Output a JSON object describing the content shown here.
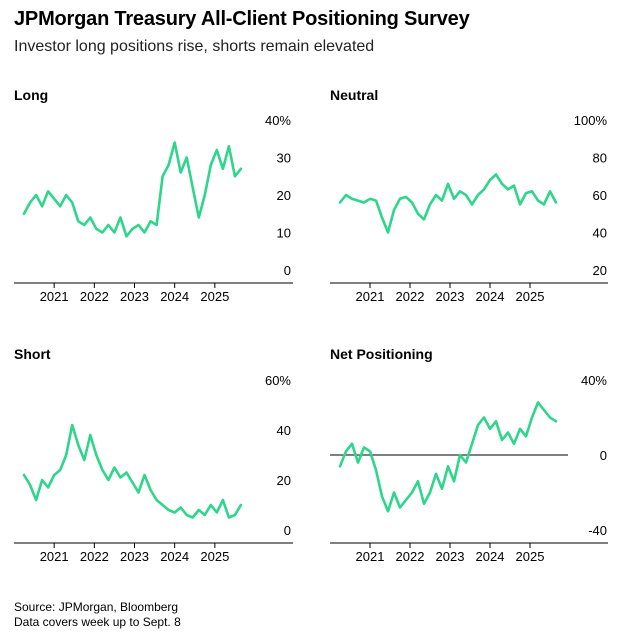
{
  "title": "JPMorgan Treasury All-Client Positioning Survey",
  "subtitle": "Investor long positions rise, shorts remain elevated",
  "source": "Source: JPMorgan, Bloomberg",
  "note": "Data covers week up to Sept. 8",
  "colors": {
    "line": "#2dd68a",
    "axis": "#000000",
    "zero": "#000000"
  },
  "chart_data": [
    {
      "type": "line",
      "title": "Long",
      "ylim": [
        0,
        40
      ],
      "yticks": [
        "40%",
        "30",
        "20",
        "10",
        "0"
      ],
      "ytick_values": [
        40,
        30,
        20,
        10,
        0
      ],
      "xticks": [
        "2021",
        "2022",
        "2023",
        "2024",
        "2025"
      ],
      "xtick_values": [
        2021,
        2022,
        2023,
        2024,
        2025
      ],
      "xlim": [
        2020.0,
        2025.95
      ],
      "series": [
        {
          "x": [
            2020.25,
            2020.4,
            2020.55,
            2020.7,
            2020.85,
            2021.0,
            2021.15,
            2021.3,
            2021.45,
            2021.6,
            2021.75,
            2021.9,
            2022.05,
            2022.2,
            2022.35,
            2022.5,
            2022.65,
            2022.8,
            2022.95,
            2023.1,
            2023.25,
            2023.4,
            2023.55,
            2023.7,
            2023.85,
            2024.0,
            2024.15,
            2024.3,
            2024.45,
            2024.6,
            2024.75,
            2024.9,
            2025.05,
            2025.2,
            2025.35,
            2025.5,
            2025.65
          ],
          "y": [
            15,
            18,
            20,
            17,
            21,
            19,
            17,
            20,
            18,
            13,
            12,
            14,
            11,
            10,
            12,
            10,
            14,
            9,
            11,
            12,
            10,
            13,
            12,
            25,
            28,
            34,
            26,
            30,
            22,
            14,
            20,
            28,
            32,
            27,
            33,
            25,
            27
          ]
        }
      ]
    },
    {
      "type": "line",
      "title": "Neutral",
      "ylim": [
        20,
        100
      ],
      "yticks": [
        "100%",
        "80",
        "60",
        "40",
        "20"
      ],
      "ytick_values": [
        100,
        80,
        60,
        40,
        20
      ],
      "xticks": [
        "2021",
        "2022",
        "2023",
        "2024",
        "2025"
      ],
      "xtick_values": [
        2021,
        2022,
        2023,
        2024,
        2025
      ],
      "xlim": [
        2020.0,
        2025.95
      ],
      "series": [
        {
          "x": [
            2020.25,
            2020.4,
            2020.55,
            2020.7,
            2020.85,
            2021.0,
            2021.15,
            2021.3,
            2021.45,
            2021.6,
            2021.75,
            2021.9,
            2022.05,
            2022.2,
            2022.35,
            2022.5,
            2022.65,
            2022.8,
            2022.95,
            2023.1,
            2023.25,
            2023.4,
            2023.55,
            2023.7,
            2023.85,
            2024.0,
            2024.15,
            2024.3,
            2024.45,
            2024.6,
            2024.75,
            2024.9,
            2025.05,
            2025.2,
            2025.35,
            2025.5,
            2025.65
          ],
          "y": [
            56,
            60,
            58,
            57,
            56,
            58,
            57,
            48,
            40,
            52,
            58,
            59,
            56,
            50,
            47,
            55,
            60,
            57,
            66,
            58,
            62,
            60,
            55,
            60,
            63,
            68,
            71,
            66,
            63,
            65,
            55,
            61,
            62,
            57,
            55,
            62,
            56
          ]
        }
      ]
    },
    {
      "type": "line",
      "title": "Short",
      "ylim": [
        0,
        60
      ],
      "yticks": [
        "60%",
        "40",
        "20",
        "0"
      ],
      "ytick_values": [
        60,
        40,
        20,
        0
      ],
      "xticks": [
        "2021",
        "2022",
        "2023",
        "2024",
        "2025"
      ],
      "xtick_values": [
        2021,
        2022,
        2023,
        2024,
        2025
      ],
      "xlim": [
        2020.0,
        2025.95
      ],
      "series": [
        {
          "x": [
            2020.25,
            2020.4,
            2020.55,
            2020.7,
            2020.85,
            2021.0,
            2021.15,
            2021.3,
            2021.45,
            2021.6,
            2021.75,
            2021.9,
            2022.05,
            2022.2,
            2022.35,
            2022.5,
            2022.65,
            2022.8,
            2022.95,
            2023.1,
            2023.25,
            2023.4,
            2023.55,
            2023.7,
            2023.85,
            2024.0,
            2024.15,
            2024.3,
            2024.45,
            2024.6,
            2024.75,
            2024.9,
            2025.05,
            2025.2,
            2025.35,
            2025.5,
            2025.65
          ],
          "y": [
            22,
            18,
            12,
            20,
            17,
            22,
            24,
            30,
            42,
            34,
            28,
            38,
            30,
            24,
            20,
            25,
            21,
            23,
            19,
            15,
            22,
            16,
            12,
            10,
            8,
            7,
            9,
            6,
            5,
            8,
            6,
            10,
            7,
            12,
            5,
            6,
            10
          ]
        }
      ]
    },
    {
      "type": "line",
      "title": "Net Positioning",
      "ylim": [
        -40,
        40
      ],
      "yticks": [
        "40%",
        "0",
        "-40"
      ],
      "ytick_values": [
        40,
        0,
        -40
      ],
      "zero_line": true,
      "xticks": [
        "2021",
        "2022",
        "2023",
        "2024",
        "2025"
      ],
      "xtick_values": [
        2021,
        2022,
        2023,
        2024,
        2025
      ],
      "xlim": [
        2020.0,
        2025.95
      ],
      "series": [
        {
          "x": [
            2020.25,
            2020.4,
            2020.55,
            2020.7,
            2020.85,
            2021.0,
            2021.15,
            2021.3,
            2021.45,
            2021.6,
            2021.75,
            2021.9,
            2022.05,
            2022.2,
            2022.35,
            2022.5,
            2022.65,
            2022.8,
            2022.95,
            2023.1,
            2023.25,
            2023.4,
            2023.55,
            2023.7,
            2023.85,
            2024.0,
            2024.15,
            2024.3,
            2024.45,
            2024.6,
            2024.75,
            2024.9,
            2025.05,
            2025.2,
            2025.35,
            2025.5,
            2025.65
          ],
          "y": [
            -6,
            2,
            6,
            -4,
            4,
            2,
            -8,
            -22,
            -30,
            -20,
            -28,
            -24,
            -20,
            -14,
            -26,
            -20,
            -10,
            -18,
            -6,
            -14,
            0,
            -4,
            6,
            16,
            20,
            14,
            18,
            8,
            12,
            6,
            14,
            10,
            20,
            28,
            24,
            20,
            18
          ]
        }
      ]
    }
  ]
}
